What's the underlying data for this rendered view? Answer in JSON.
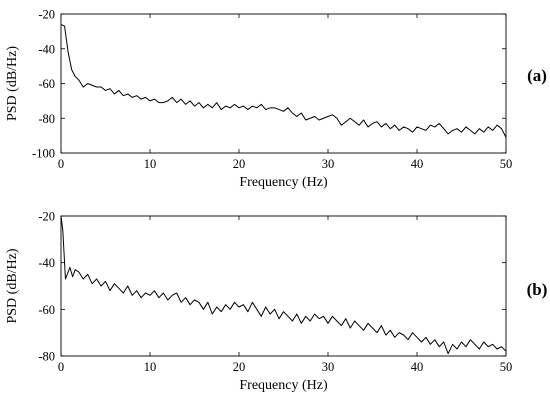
{
  "chart_data": [
    {
      "type": "line",
      "panel_label": "(a)",
      "xlabel": "Frequency (Hz)",
      "ylabel": "PSD (dB/Hz)",
      "xlim": [
        0,
        50
      ],
      "ylim": [
        -100,
        -20
      ],
      "xticks": [
        0,
        10,
        20,
        30,
        40,
        50
      ],
      "yticks": [
        -20,
        -40,
        -60,
        -80,
        -100
      ],
      "grid": false,
      "series": [
        {
          "color": "#000000",
          "x": [
            0,
            0.4,
            0.8,
            1.2,
            1.6,
            2.0,
            2.5,
            3.0,
            3.5,
            4.0,
            4.5,
            5.0,
            5.5,
            6.0,
            6.5,
            7.0,
            7.5,
            8.0,
            8.5,
            9.0,
            9.5,
            10.0,
            10.5,
            11.0,
            11.5,
            12.0,
            12.5,
            13.0,
            13.5,
            14.0,
            14.5,
            15.0,
            15.5,
            16.0,
            16.5,
            17.0,
            17.5,
            18.0,
            18.5,
            19.0,
            19.5,
            20.0,
            20.5,
            21.0,
            21.5,
            22.0,
            22.5,
            23.0,
            23.5,
            24.0,
            24.5,
            25.0,
            25.5,
            26.0,
            26.5,
            27.0,
            27.5,
            28.0,
            28.5,
            29.0,
            29.5,
            30.0,
            30.5,
            31.0,
            31.5,
            32.0,
            32.5,
            33.0,
            33.5,
            34.0,
            34.5,
            35.0,
            35.5,
            36.0,
            36.5,
            37.0,
            37.5,
            38.0,
            38.5,
            39.0,
            39.5,
            40.0,
            40.5,
            41.0,
            41.5,
            42.0,
            42.5,
            43.0,
            43.5,
            44.0,
            44.5,
            45.0,
            45.5,
            46.0,
            46.5,
            47.0,
            47.5,
            48.0,
            48.5,
            49.0,
            49.5,
            50.0
          ],
          "y": [
            -26,
            -27,
            -42,
            -52,
            -56,
            -58,
            -62,
            -60,
            -61,
            -62,
            -62,
            -64,
            -63,
            -66,
            -64,
            -67,
            -66,
            -68,
            -67,
            -69,
            -68,
            -70,
            -69,
            -71,
            -71,
            -70,
            -68,
            -71,
            -69,
            -72,
            -70,
            -73,
            -71,
            -74,
            -72,
            -74,
            -71,
            -75,
            -73,
            -74,
            -72,
            -74,
            -73,
            -75,
            -73,
            -74,
            -72,
            -75,
            -74,
            -74,
            -75,
            -76,
            -74,
            -77,
            -79,
            -77,
            -81,
            -80,
            -79,
            -81,
            -80,
            -79,
            -78,
            -80,
            -84,
            -82,
            -80,
            -82,
            -84,
            -81,
            -85,
            -83,
            -82,
            -85,
            -83,
            -86,
            -84,
            -87,
            -85,
            -86,
            -88,
            -85,
            -86,
            -87,
            -84,
            -85,
            -83,
            -86,
            -89,
            -87,
            -86,
            -88,
            -85,
            -87,
            -89,
            -86,
            -88,
            -85,
            -87,
            -84,
            -86,
            -91
          ]
        }
      ]
    },
    {
      "type": "line",
      "panel_label": "(b)",
      "xlabel": "Frequency (Hz)",
      "ylabel": "PSD (dB/Hz)",
      "xlim": [
        0,
        50
      ],
      "ylim": [
        -80,
        -20
      ],
      "xticks": [
        0,
        10,
        20,
        30,
        40,
        50
      ],
      "yticks": [
        -20,
        -40,
        -60,
        -80
      ],
      "grid": false,
      "series": [
        {
          "color": "#000000",
          "x": [
            0,
            0.2,
            0.5,
            0.8,
            1.0,
            1.3,
            1.6,
            2.0,
            2.5,
            3.0,
            3.5,
            4.0,
            4.5,
            5.0,
            5.5,
            6.0,
            6.5,
            7.0,
            7.5,
            8.0,
            8.5,
            9.0,
            9.5,
            10.0,
            10.5,
            11.0,
            11.5,
            12.0,
            12.5,
            13.0,
            13.5,
            14.0,
            14.5,
            15.0,
            15.5,
            16.0,
            16.5,
            17.0,
            17.5,
            18.0,
            18.5,
            19.0,
            19.5,
            20.0,
            20.5,
            21.0,
            21.5,
            22.0,
            22.5,
            23.0,
            23.5,
            24.0,
            24.5,
            25.0,
            25.5,
            26.0,
            26.5,
            27.0,
            27.5,
            28.0,
            28.5,
            29.0,
            29.5,
            30.0,
            30.5,
            31.0,
            31.5,
            32.0,
            32.5,
            33.0,
            33.5,
            34.0,
            34.5,
            35.0,
            35.5,
            36.0,
            36.5,
            37.0,
            37.5,
            38.0,
            38.5,
            39.0,
            39.5,
            40.0,
            40.5,
            41.0,
            41.5,
            42.0,
            42.5,
            43.0,
            43.5,
            44.0,
            44.5,
            45.0,
            45.5,
            46.0,
            46.5,
            47.0,
            47.5,
            48.0,
            48.5,
            49.0,
            49.5,
            50.0
          ],
          "y": [
            -20,
            -26,
            -47,
            -44,
            -42,
            -46,
            -43,
            -44,
            -47,
            -45,
            -49,
            -47,
            -50,
            -48,
            -52,
            -49,
            -51,
            -53,
            -50,
            -54,
            -52,
            -55,
            -53,
            -54,
            -52,
            -55,
            -53,
            -56,
            -54,
            -53,
            -57,
            -55,
            -58,
            -56,
            -57,
            -60,
            -57,
            -62,
            -59,
            -61,
            -58,
            -60,
            -57,
            -59,
            -58,
            -61,
            -57,
            -60,
            -63,
            -59,
            -62,
            -60,
            -64,
            -61,
            -63,
            -65,
            -62,
            -66,
            -63,
            -65,
            -62,
            -64,
            -63,
            -66,
            -63,
            -65,
            -67,
            -64,
            -68,
            -65,
            -67,
            -69,
            -66,
            -68,
            -70,
            -67,
            -71,
            -69,
            -72,
            -70,
            -71,
            -73,
            -70,
            -72,
            -74,
            -72,
            -75,
            -73,
            -76,
            -74,
            -79,
            -75,
            -77,
            -74,
            -76,
            -73,
            -75,
            -77,
            -74,
            -76,
            -75,
            -77,
            -76,
            -78
          ]
        }
      ]
    }
  ]
}
